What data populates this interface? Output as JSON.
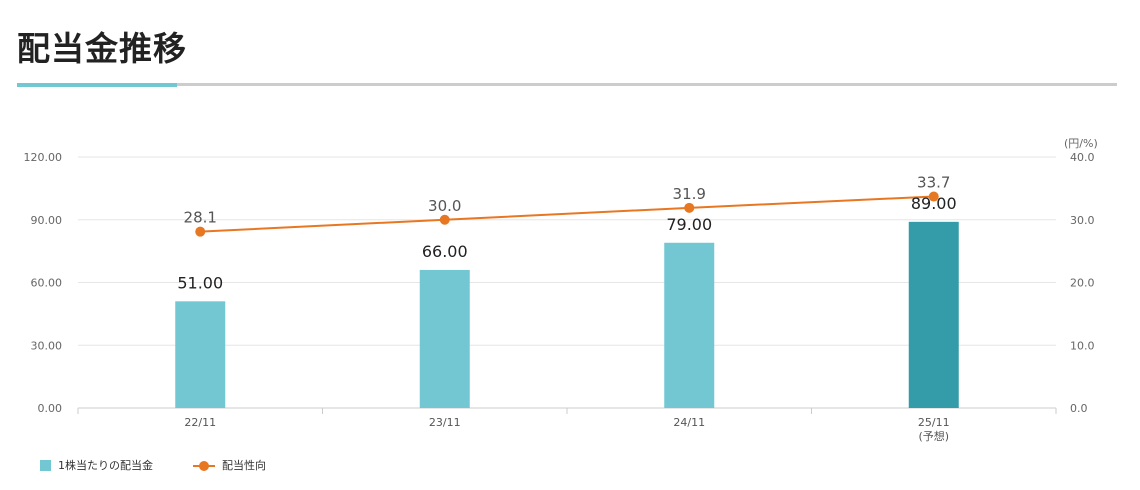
{
  "page": {
    "title": "配当金推移"
  },
  "chart_data": {
    "type": "bar",
    "categories": [
      "22/11",
      "23/11",
      "24/11",
      "25/11"
    ],
    "category_notes": [
      "",
      "",
      "",
      "(予想)"
    ],
    "series": [
      {
        "name": "1株当たりの配当金",
        "type": "bar",
        "axis": "left",
        "values": [
          51.0,
          66.0,
          79.0,
          89.0
        ],
        "labels": [
          "51.00",
          "66.00",
          "79.00",
          "89.00"
        ],
        "colors": [
          "#72c7d2",
          "#72c7d2",
          "#72c7d2",
          "#339ca8"
        ]
      },
      {
        "name": "配当性向",
        "type": "line",
        "axis": "right",
        "values": [
          28.1,
          30.0,
          31.9,
          33.7
        ],
        "labels": [
          "28.1",
          "30.0",
          "31.9",
          "33.7"
        ],
        "color": "#e87722"
      }
    ],
    "y_left": {
      "min": 0,
      "max": 120,
      "ticks": [
        "0.00",
        "30.00",
        "60.00",
        "90.00",
        "120.00"
      ]
    },
    "y_right": {
      "min": 0,
      "max": 40,
      "unit": "(円/%)",
      "ticks": [
        "0.0",
        "10.0",
        "20.0",
        "30.0",
        "40.0"
      ]
    },
    "grid": true,
    "legend_position": "bottom-left"
  }
}
